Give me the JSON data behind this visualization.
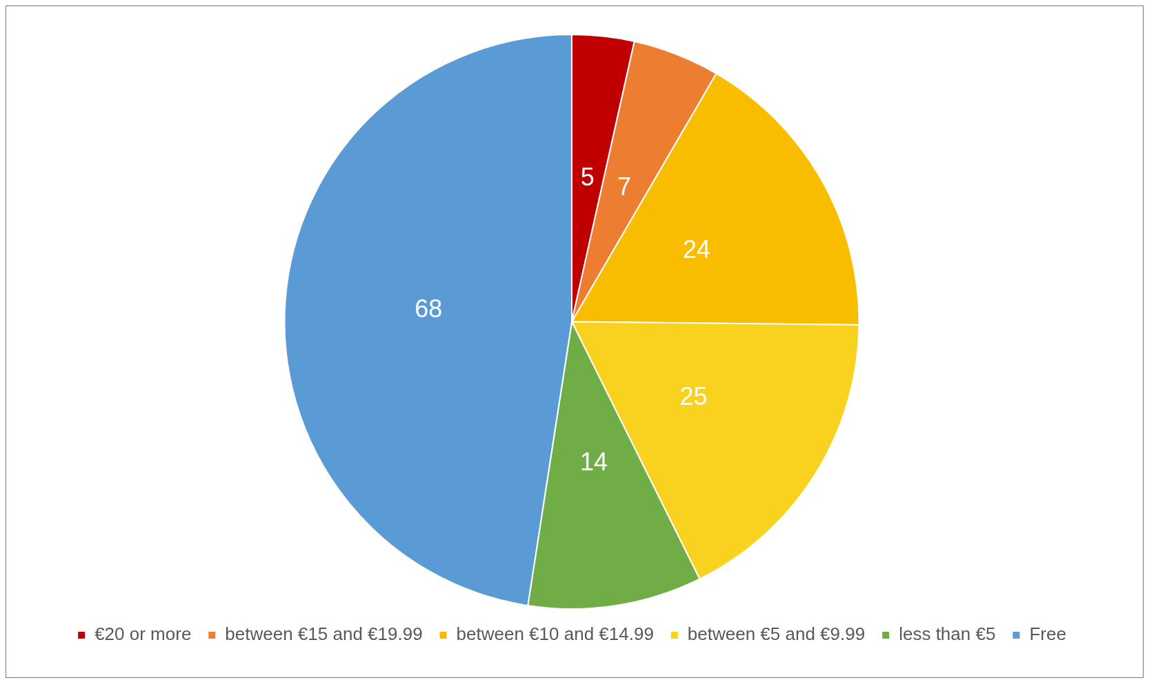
{
  "chart_data": {
    "type": "pie",
    "categories": [
      "€20 or more",
      "between €15 and €19.99",
      "between €10 and €14.99",
      "between €5 and €9.99",
      "less than €5",
      "Free"
    ],
    "values": [
      5,
      7,
      24,
      25,
      14,
      68
    ],
    "colors": [
      "#c00000",
      "#ed7d31",
      "#f9bd00",
      "#f9d11f",
      "#70ad47",
      "#5b9bd5"
    ],
    "data_labels": true,
    "legend": "bottom"
  }
}
